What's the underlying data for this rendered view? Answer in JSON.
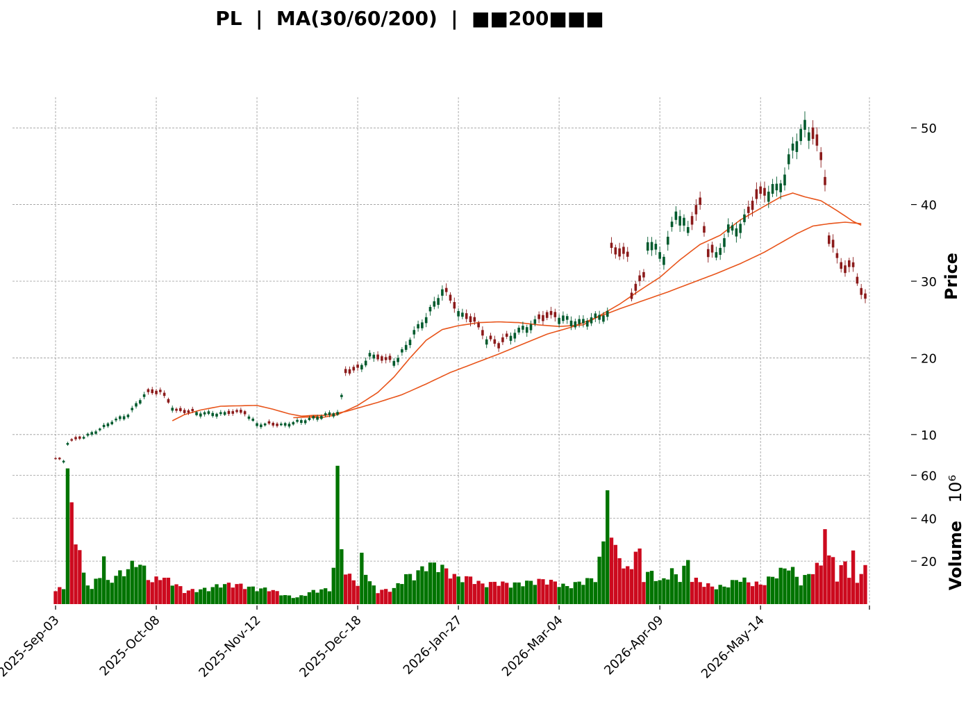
{
  "chart_data": {
    "type": "candlestick",
    "title": "PL  |  MA(30/60/200)  |  ■■200■■■",
    "price_axis": {
      "label": "Price",
      "ticks": [
        10,
        20,
        30,
        40,
        50
      ],
      "ylim": [
        6,
        54
      ]
    },
    "volume_axis": {
      "label": "Volume",
      "multiplier": "10⁶",
      "ticks": [
        20,
        40,
        60
      ],
      "ylim": [
        0,
        64
      ]
    },
    "x_ticks": [
      "2025-Sep-03",
      "2025-Oct-08",
      "2025-Nov-12",
      "2025-Dec-18",
      "2026-Jan-27",
      "2026-Mar-04",
      "2026-Apr-09",
      "2026-May-14"
    ],
    "x_tick_index": [
      0,
      25,
      50,
      75,
      100,
      125,
      150,
      175
    ],
    "grid": true,
    "colors": {
      "up": "#005a2d",
      "down": "#8b1a1a",
      "vol_up": "#007400",
      "vol_down": "#cc0a1e",
      "ma": "#e8541a",
      "grid": "#999999"
    },
    "price_anchors": [
      [
        0,
        6.8
      ],
      [
        2,
        6.6
      ],
      [
        3,
        9
      ],
      [
        5,
        9.3
      ],
      [
        8,
        10
      ],
      [
        11,
        10.8
      ],
      [
        14,
        11.8
      ],
      [
        18,
        12.7
      ],
      [
        20,
        14
      ],
      [
        22,
        15.3
      ],
      [
        26,
        15.5
      ],
      [
        30,
        13
      ],
      [
        33,
        12.9
      ],
      [
        37,
        12.9
      ],
      [
        43,
        12.8
      ],
      [
        47,
        12.8
      ],
      [
        50,
        11.5
      ],
      [
        55,
        11.2
      ],
      [
        62,
        12
      ],
      [
        68,
        12.8
      ],
      [
        70,
        13
      ],
      [
        71,
        15
      ],
      [
        72,
        18
      ],
      [
        75,
        18.5
      ],
      [
        78,
        20.5
      ],
      [
        82,
        19.5
      ],
      [
        85,
        20
      ],
      [
        89,
        23.5
      ],
      [
        92,
        25.5
      ],
      [
        96,
        29
      ],
      [
        100,
        26
      ],
      [
        104,
        24.5
      ],
      [
        107,
        22.5
      ],
      [
        110,
        21.5
      ],
      [
        114,
        23.5
      ],
      [
        120,
        25
      ],
      [
        125,
        25.5
      ],
      [
        130,
        24.8
      ],
      [
        137,
        26
      ],
      [
        138,
        34
      ],
      [
        142,
        33
      ],
      [
        143,
        28
      ],
      [
        146,
        30.5
      ],
      [
        147,
        35.5
      ],
      [
        151,
        33.5
      ],
      [
        154,
        39.5
      ],
      [
        157,
        37
      ],
      [
        160,
        39.5
      ],
      [
        162,
        33.5
      ],
      [
        164,
        33.5
      ],
      [
        167,
        37
      ],
      [
        170,
        37.5
      ],
      [
        174,
        40.5
      ],
      [
        177,
        42
      ],
      [
        179,
        42.5
      ],
      [
        181,
        44
      ],
      [
        183,
        48
      ],
      [
        186,
        50.5
      ],
      [
        188,
        49
      ],
      [
        190,
        45.5
      ],
      [
        191,
        43
      ],
      [
        192,
        35
      ],
      [
        194,
        33
      ],
      [
        196,
        31
      ],
      [
        198,
        32
      ],
      [
        200,
        28
      ],
      [
        201,
        27.5
      ],
      [
        202,
        28
      ]
    ],
    "volume_anchors": [
      [
        0,
        6
      ],
      [
        2,
        8
      ],
      [
        3,
        63
      ],
      [
        4,
        42
      ],
      [
        5,
        32
      ],
      [
        6,
        25
      ],
      [
        7,
        13
      ],
      [
        9,
        7
      ],
      [
        11,
        14
      ],
      [
        12,
        22
      ],
      [
        13,
        10
      ],
      [
        15,
        13
      ],
      [
        18,
        16
      ],
      [
        20,
        20
      ],
      [
        22,
        16
      ],
      [
        24,
        10
      ],
      [
        26,
        13
      ],
      [
        30,
        9
      ],
      [
        32,
        6
      ],
      [
        38,
        7
      ],
      [
        41,
        9
      ],
      [
        45,
        9
      ],
      [
        50,
        7
      ],
      [
        53,
        7
      ],
      [
        57,
        4
      ],
      [
        60,
        3
      ],
      [
        64,
        6
      ],
      [
        68,
        7
      ],
      [
        69,
        16
      ],
      [
        70,
        59
      ],
      [
        71,
        30
      ],
      [
        72,
        13
      ],
      [
        74,
        13
      ],
      [
        75,
        8
      ],
      [
        76,
        22
      ],
      [
        77,
        16
      ],
      [
        78,
        10
      ],
      [
        80,
        6
      ],
      [
        84,
        7
      ],
      [
        87,
        13
      ],
      [
        89,
        13
      ],
      [
        92,
        18
      ],
      [
        94,
        18
      ],
      [
        96,
        17
      ],
      [
        98,
        14
      ],
      [
        100,
        12
      ],
      [
        103,
        12
      ],
      [
        106,
        9
      ],
      [
        110,
        10
      ],
      [
        113,
        9
      ],
      [
        117,
        10
      ],
      [
        121,
        11
      ],
      [
        124,
        10
      ],
      [
        127,
        8
      ],
      [
        130,
        10
      ],
      [
        134,
        12
      ],
      [
        136,
        28
      ],
      [
        137,
        62
      ],
      [
        138,
        28
      ],
      [
        140,
        25
      ],
      [
        141,
        15
      ],
      [
        143,
        19
      ],
      [
        145,
        25
      ],
      [
        146,
        12
      ],
      [
        148,
        15
      ],
      [
        150,
        10
      ],
      [
        153,
        15
      ],
      [
        155,
        12
      ],
      [
        157,
        20
      ],
      [
        158,
        12
      ],
      [
        160,
        10
      ],
      [
        163,
        8
      ],
      [
        166,
        8
      ],
      [
        170,
        12
      ],
      [
        172,
        10
      ],
      [
        175,
        9
      ],
      [
        180,
        15
      ],
      [
        182,
        18
      ],
      [
        185,
        10
      ],
      [
        188,
        16
      ],
      [
        190,
        18
      ],
      [
        191,
        40
      ],
      [
        192,
        20
      ],
      [
        193,
        22
      ],
      [
        194,
        12
      ],
      [
        195,
        16
      ],
      [
        196,
        20
      ],
      [
        197,
        14
      ],
      [
        198,
        22
      ],
      [
        199,
        10
      ],
      [
        200,
        16
      ]
    ],
    "down_ranges": [
      [
        0,
        1
      ],
      [
        4,
        6
      ],
      [
        23,
        28
      ],
      [
        30,
        34
      ],
      [
        43,
        47
      ],
      [
        53,
        55
      ],
      [
        72,
        75
      ],
      [
        80,
        83
      ],
      [
        97,
        99
      ],
      [
        102,
        106
      ],
      [
        108,
        112
      ],
      [
        120,
        124
      ],
      [
        138,
        146
      ],
      [
        158,
        163
      ],
      [
        172,
        176
      ],
      [
        188,
        201
      ]
    ],
    "ma30_anchors": [
      [
        29,
        11.8
      ],
      [
        32,
        12.6
      ],
      [
        36,
        13.2
      ],
      [
        41,
        13.7
      ],
      [
        50,
        13.8
      ],
      [
        54,
        13.3
      ],
      [
        58,
        12.7
      ],
      [
        62,
        12.3
      ],
      [
        66,
        12.2
      ],
      [
        70,
        12.6
      ],
      [
        75,
        13.8
      ],
      [
        80,
        15.5
      ],
      [
        84,
        17.5
      ],
      [
        88,
        20
      ],
      [
        92,
        22.3
      ],
      [
        96,
        23.7
      ],
      [
        100,
        24.2
      ],
      [
        105,
        24.6
      ],
      [
        110,
        24.7
      ],
      [
        115,
        24.6
      ],
      [
        120,
        24.3
      ],
      [
        125,
        24.1
      ],
      [
        131,
        24.3
      ],
      [
        135,
        25.5
      ],
      [
        140,
        27
      ],
      [
        145,
        28.8
      ],
      [
        150,
        30.5
      ],
      [
        155,
        32.8
      ],
      [
        160,
        34.8
      ],
      [
        165,
        36
      ],
      [
        170,
        38
      ],
      [
        175,
        39.5
      ],
      [
        180,
        41
      ],
      [
        183,
        41.5
      ],
      [
        186,
        41
      ],
      [
        190,
        40.5
      ],
      [
        194,
        39.2
      ],
      [
        198,
        37.8
      ],
      [
        200,
        37.3
      ]
    ],
    "ma60_anchors": [
      [
        59,
        12.2
      ],
      [
        63,
        12.3
      ],
      [
        68,
        12.6
      ],
      [
        72,
        13
      ],
      [
        76,
        13.6
      ],
      [
        80,
        14.2
      ],
      [
        86,
        15.2
      ],
      [
        92,
        16.6
      ],
      [
        98,
        18.1
      ],
      [
        104,
        19.3
      ],
      [
        110,
        20.5
      ],
      [
        116,
        21.8
      ],
      [
        122,
        23.1
      ],
      [
        128,
        24
      ],
      [
        134,
        25.2
      ],
      [
        140,
        26.4
      ],
      [
        146,
        27.5
      ],
      [
        152,
        28.6
      ],
      [
        158,
        29.8
      ],
      [
        164,
        31
      ],
      [
        170,
        32.3
      ],
      [
        176,
        33.8
      ],
      [
        180,
        35
      ],
      [
        184,
        36.2
      ],
      [
        188,
        37.2
      ],
      [
        192,
        37.5
      ],
      [
        196,
        37.7
      ],
      [
        200,
        37.5
      ]
    ],
    "ma200_anchors": [
      [
        61,
        12.4
      ],
      [
        64,
        12.5
      ],
      [
        67,
        12.5
      ]
    ]
  }
}
